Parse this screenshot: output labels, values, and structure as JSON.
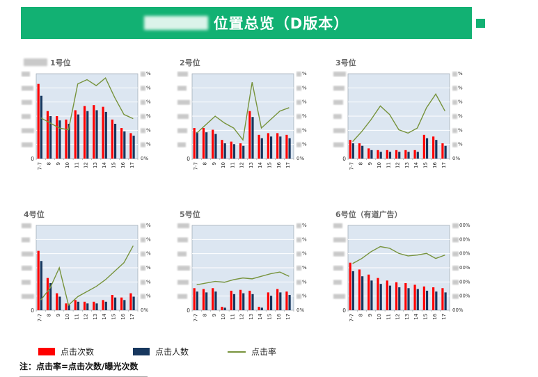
{
  "header": {
    "title": "位置总览（D版本）",
    "title_prefix_redacted": true,
    "bg_color": "#12b173"
  },
  "style": {
    "plot_bg": "#dce6f1",
    "gridline_color": "#ffffff",
    "bar_clicks_color": "#ff0000",
    "bar_users_color": "#17375e",
    "line_rate_color": "#77933c"
  },
  "legend": {
    "items": [
      {
        "label": "点击次数",
        "color": "#ff0000",
        "type": "bar"
      },
      {
        "label": "点击人数",
        "color": "#17375e",
        "type": "bar"
      },
      {
        "label": "点击率",
        "color": "#77933c",
        "type": "line"
      }
    ]
  },
  "note": "注：点击率=点击次数/曝光次数",
  "chart_data": [
    {
      "type": "combo",
      "title": "1号位",
      "title_prefix_redacted": true,
      "categories": [
        "7-7",
        "8",
        "9",
        "10",
        "11",
        "12",
        "13",
        "14",
        "15",
        "16",
        "17"
      ],
      "series": [
        {
          "name": "点击次数",
          "type": "bar",
          "color": "#ff0000",
          "values": [
            88,
            56,
            50,
            46,
            57,
            62,
            63,
            61,
            46,
            36,
            30
          ]
        },
        {
          "name": "点击人数",
          "type": "bar",
          "color": "#17375e",
          "values": [
            74,
            50,
            45,
            41,
            52,
            56,
            57,
            55,
            41,
            32,
            27
          ]
        },
        {
          "name": "点击率",
          "type": "line",
          "color": "#77933c",
          "values": [
            48,
            42,
            36,
            34,
            88,
            93,
            86,
            95,
            72,
            52,
            47
          ]
        }
      ],
      "value_scale": "estimated_percent_of_plot_height (numeric axis labels blurred in source)",
      "left_axis_zero": "0",
      "right_axis_suffix": "%",
      "right_axis_bottom": "0%",
      "right_axis_wide": false
    },
    {
      "type": "combo",
      "title": "2号位",
      "title_prefix_redacted": false,
      "categories": [
        "7-7",
        "8",
        "9",
        "10",
        "11",
        "12",
        "13",
        "14",
        "15",
        "16",
        "17"
      ],
      "series": [
        {
          "name": "点击次数",
          "type": "bar",
          "color": "#ff0000",
          "values": [
            36,
            36,
            34,
            22,
            20,
            18,
            56,
            28,
            30,
            30,
            28
          ]
        },
        {
          "name": "点击人数",
          "type": "bar",
          "color": "#17375e",
          "values": [
            31,
            31,
            29,
            18,
            17,
            15,
            49,
            24,
            26,
            26,
            24
          ]
        },
        {
          "name": "点击率",
          "type": "line",
          "color": "#77933c",
          "values": [
            30,
            40,
            50,
            42,
            36,
            22,
            90,
            36,
            46,
            56,
            60
          ]
        }
      ],
      "value_scale": "estimated_percent_of_plot_height (numeric axis labels blurred in source)",
      "left_axis_zero": "0",
      "right_axis_suffix": "%",
      "right_axis_bottom": "0%",
      "right_axis_wide": false
    },
    {
      "type": "combo",
      "title": "3号位",
      "title_prefix_redacted": false,
      "categories": [
        "7-7",
        "8",
        "9",
        "10",
        "11",
        "12",
        "13",
        "14",
        "15",
        "16",
        "17"
      ],
      "series": [
        {
          "name": "点击次数",
          "type": "bar",
          "color": "#ff0000",
          "values": [
            22,
            18,
            12,
            10,
            10,
            10,
            10,
            10,
            28,
            26,
            18
          ]
        },
        {
          "name": "点击人数",
          "type": "bar",
          "color": "#17375e",
          "values": [
            18,
            15,
            10,
            8,
            8,
            8,
            8,
            8,
            24,
            22,
            15
          ]
        },
        {
          "name": "点击率",
          "type": "line",
          "color": "#77933c",
          "values": [
            20,
            32,
            46,
            62,
            52,
            34,
            30,
            36,
            60,
            76,
            56
          ]
        }
      ],
      "value_scale": "estimated_percent_of_plot_height (numeric axis labels blurred in source)",
      "left_axis_zero": "0",
      "right_axis_suffix": "%",
      "right_axis_bottom": "0%",
      "right_axis_wide": false
    },
    {
      "type": "combo",
      "title": "4号位",
      "title_prefix_redacted": false,
      "categories": [
        "7-7",
        "8",
        "9",
        "10",
        "11",
        "12",
        "13",
        "14",
        "15",
        "16",
        "17"
      ],
      "series": [
        {
          "name": "点击次数",
          "type": "bar",
          "color": "#ff0000",
          "values": [
            70,
            38,
            20,
            8,
            12,
            10,
            10,
            12,
            18,
            15,
            20
          ]
        },
        {
          "name": "点击人数",
          "type": "bar",
          "color": "#17375e",
          "values": [
            58,
            32,
            16,
            6,
            10,
            8,
            8,
            10,
            15,
            12,
            16
          ]
        },
        {
          "name": "点击率",
          "type": "line",
          "color": "#77933c",
          "values": [
            12,
            26,
            50,
            6,
            16,
            22,
            28,
            36,
            46,
            56,
            76
          ]
        }
      ],
      "value_scale": "estimated_percent_of_plot_height (numeric axis labels blurred in source)",
      "left_axis_zero": "0",
      "right_axis_suffix": "%",
      "right_axis_bottom": "0%",
      "right_axis_wide": false
    },
    {
      "type": "combo",
      "title": "5号位",
      "title_prefix_redacted": false,
      "categories": [
        "7-7",
        "8",
        "9",
        "10",
        "11",
        "12",
        "13",
        "14",
        "15",
        "16",
        "17"
      ],
      "series": [
        {
          "name": "点击次数",
          "type": "bar",
          "color": "#ff0000",
          "values": [
            26,
            25,
            26,
            4,
            23,
            24,
            23,
            4,
            21,
            25,
            22
          ]
        },
        {
          "name": "点击人数",
          "type": "bar",
          "color": "#17375e",
          "values": [
            22,
            21,
            22,
            3,
            19,
            20,
            19,
            3,
            17,
            21,
            18
          ]
        },
        {
          "name": "点击率",
          "type": "line",
          "color": "#77933c",
          "values": [
            30,
            32,
            34,
            33,
            36,
            38,
            37,
            40,
            43,
            45,
            40
          ]
        }
      ],
      "value_scale": "estimated_percent_of_plot_height (numeric axis labels blurred in source)",
      "left_axis_zero": "0",
      "right_axis_suffix": "%",
      "right_axis_bottom": "0%",
      "right_axis_wide": false
    },
    {
      "type": "combo",
      "title": "6号位（有道广告）",
      "title_prefix_redacted": false,
      "categories": [
        "7-7",
        "8",
        "9",
        "10",
        "11",
        "12",
        "13",
        "14",
        "15",
        "16",
        "17"
      ],
      "series": [
        {
          "name": "点击次数",
          "type": "bar",
          "color": "#ff0000",
          "values": [
            56,
            48,
            42,
            38,
            35,
            33,
            32,
            30,
            28,
            27,
            26
          ]
        },
        {
          "name": "点击人数",
          "type": "bar",
          "color": "#17375e",
          "values": [
            46,
            40,
            35,
            31,
            29,
            27,
            26,
            25,
            23,
            22,
            21
          ]
        },
        {
          "name": "点击率",
          "type": "line",
          "color": "#77933c",
          "values": [
            55,
            61,
            69,
            75,
            73,
            67,
            64,
            65,
            67,
            61,
            65
          ]
        }
      ],
      "value_scale": "estimated_percent_of_plot_height (numeric axis labels blurred in source)",
      "left_axis_zero": "0",
      "right_axis_suffix": "00%",
      "right_axis_bottom": "00%",
      "right_axis_wide": true
    }
  ]
}
